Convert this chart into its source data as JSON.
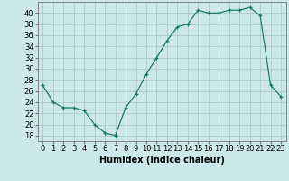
{
  "x": [
    0,
    1,
    2,
    3,
    4,
    5,
    6,
    7,
    8,
    9,
    10,
    11,
    12,
    13,
    14,
    15,
    16,
    17,
    18,
    19,
    20,
    21,
    22,
    23
  ],
  "y": [
    27,
    24,
    23,
    23,
    22.5,
    20,
    18.5,
    18,
    23,
    25.5,
    29,
    32,
    35,
    37.5,
    38,
    40.5,
    40,
    40,
    40.5,
    40.5,
    41,
    39.5,
    27,
    25
  ],
  "line_color": "#1a7a6e",
  "marker": "+",
  "bg_color": "#cce8e8",
  "grid_color": "#aacccc",
  "xlabel": "Humidex (Indice chaleur)",
  "ylabel_ticks": [
    18,
    20,
    22,
    24,
    26,
    28,
    30,
    32,
    34,
    36,
    38,
    40
  ],
  "ylim": [
    17,
    42
  ],
  "xlim": [
    -0.5,
    23.5
  ],
  "xlabel_fontsize": 7,
  "tick_fontsize": 6
}
